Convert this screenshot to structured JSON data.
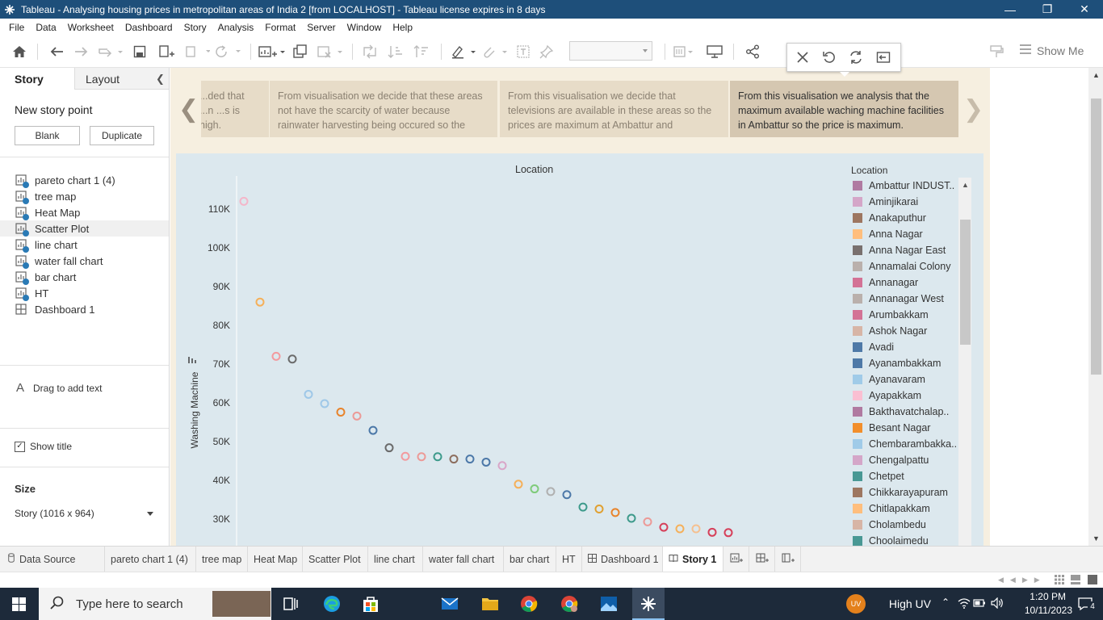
{
  "window": {
    "title": "Tableau - Analysing housing prices in metropolitan areas of India 2 [from LOCALHOST] - Tableau license expires in 8 days"
  },
  "menu": [
    "File",
    "Data",
    "Worksheet",
    "Dashboard",
    "Story",
    "Analysis",
    "Format",
    "Server",
    "Window",
    "Help"
  ],
  "toolbar": {
    "show_me": "Show Me"
  },
  "left_pane": {
    "tab_story": "Story",
    "tab_layout": "Layout",
    "new_story_point": "New story point",
    "blank_button": "Blank",
    "duplicate_button": "Duplicate",
    "sheets": [
      "pareto chart 1 (4)",
      "tree map",
      "Heat Map",
      "Scatter Plot",
      "line chart",
      "water fall chart",
      "bar chart",
      "HT",
      "Dashboard 1"
    ],
    "drag_text": "Drag to add text",
    "show_title": "Show title",
    "size_label": "Size",
    "size_value": "Story (1016 x 964)"
  },
  "story_points": [
    {
      "text": "...ded that ...n ...s is high."
    },
    {
      "text": "From visualisation we decide that these areas not have the scarcity of water because rainwater harvesting being occured so the"
    },
    {
      "text": "From this visualisation we decide that televisions are available in these areas so the prices are maximum at Ambattur and"
    },
    {
      "text": "From this visualisation we analysis that the maximum available waching machine facilities in Ambattur so the price is maximum."
    }
  ],
  "chart_data": {
    "type": "scatter",
    "title": "Location",
    "ylabel": "Washing Machine",
    "ylim": [
      26000,
      116000
    ],
    "yticks": [
      "110K",
      "100K",
      "90K",
      "80K",
      "70K",
      "60K",
      "50K",
      "40K",
      "30K"
    ],
    "ytick_values": [
      110000,
      100000,
      90000,
      80000,
      70000,
      60000,
      50000,
      40000,
      30000
    ],
    "points": [
      {
        "x": 1,
        "y": 112000,
        "color": "#f4b6c9"
      },
      {
        "x": 2,
        "y": 86000,
        "color": "#f5b05a"
      },
      {
        "x": 3,
        "y": 72000,
        "color": "#f39a9e"
      },
      {
        "x": 4,
        "y": 71300,
        "color": "#6b6b6b"
      },
      {
        "x": 5,
        "y": 62200,
        "color": "#9fc8e8"
      },
      {
        "x": 6,
        "y": 59800,
        "color": "#9fc8e8"
      },
      {
        "x": 7,
        "y": 57600,
        "color": "#e8832a"
      },
      {
        "x": 8,
        "y": 56600,
        "color": "#ec9a97"
      },
      {
        "x": 9,
        "y": 52900,
        "color": "#4c78a8"
      },
      {
        "x": 10,
        "y": 48400,
        "color": "#6b6b6b"
      },
      {
        "x": 11,
        "y": 46200,
        "color": "#f39a9e"
      },
      {
        "x": 12,
        "y": 46100,
        "color": "#ec9a97"
      },
      {
        "x": 13,
        "y": 46100,
        "color": "#3d9a8b"
      },
      {
        "x": 14,
        "y": 45500,
        "color": "#8c6d5d"
      },
      {
        "x": 15,
        "y": 45500,
        "color": "#4c78a8"
      },
      {
        "x": 16,
        "y": 44700,
        "color": "#4c78a8"
      },
      {
        "x": 17,
        "y": 43800,
        "color": "#d9a6c8"
      },
      {
        "x": 18,
        "y": 39000,
        "color": "#f5b05a"
      },
      {
        "x": 19,
        "y": 37800,
        "color": "#7fcb7a"
      },
      {
        "x": 20,
        "y": 37100,
        "color": "#b0b0b0"
      },
      {
        "x": 21,
        "y": 36300,
        "color": "#4c78a8"
      },
      {
        "x": 22,
        "y": 33100,
        "color": "#3d9a8b"
      },
      {
        "x": 23,
        "y": 32600,
        "color": "#e0a030"
      },
      {
        "x": 24,
        "y": 31700,
        "color": "#e8832a"
      },
      {
        "x": 25,
        "y": 30200,
        "color": "#3d9a8b"
      },
      {
        "x": 26,
        "y": 29300,
        "color": "#ec9a97"
      },
      {
        "x": 27,
        "y": 27900,
        "color": "#d6405a"
      },
      {
        "x": 28,
        "y": 27500,
        "color": "#f5b05a"
      },
      {
        "x": 29,
        "y": 27500,
        "color": "#f5c090"
      },
      {
        "x": 30,
        "y": 26600,
        "color": "#d6405a"
      },
      {
        "x": 31,
        "y": 26500,
        "color": "#d6405a"
      }
    ],
    "legend_title": "Location",
    "legend": [
      {
        "label": "Ambattur INDUST..",
        "color": "#b07aa1"
      },
      {
        "label": "Aminjikarai",
        "color": "#d4a6c8"
      },
      {
        "label": "Anakaputhur",
        "color": "#9d7660"
      },
      {
        "label": "Anna Nagar",
        "color": "#ffbe7d"
      },
      {
        "label": "Anna Nagar East",
        "color": "#79706e"
      },
      {
        "label": "Annamalai Colony",
        "color": "#bab0ac"
      },
      {
        "label": "Annanagar",
        "color": "#d37295"
      },
      {
        "label": "Annanagar West",
        "color": "#bab0ac"
      },
      {
        "label": "Arumbakkam",
        "color": "#d37295"
      },
      {
        "label": "Ashok Nagar",
        "color": "#d7b5a6"
      },
      {
        "label": "Avadi",
        "color": "#4e79a7"
      },
      {
        "label": "Ayanambakkam",
        "color": "#4e79a7"
      },
      {
        "label": "Ayanavaram",
        "color": "#a0cbe8"
      },
      {
        "label": "Ayapakkam",
        "color": "#fabfd2"
      },
      {
        "label": "Bakthavatchalap..",
        "color": "#b07aa1"
      },
      {
        "label": "Besant Nagar",
        "color": "#f28e2b"
      },
      {
        "label": "Chembarambakka..",
        "color": "#a0cbe8"
      },
      {
        "label": "Chengalpattu",
        "color": "#d4a6c8"
      },
      {
        "label": "Chetpet",
        "color": "#499894"
      },
      {
        "label": "Chikkarayapuram",
        "color": "#9d7660"
      },
      {
        "label": "Chitlapakkam",
        "color": "#ffbe7d"
      },
      {
        "label": "Cholambedu",
        "color": "#d7b5a6"
      },
      {
        "label": "Choolaimedu",
        "color": "#499894"
      }
    ]
  },
  "bottom_tabs": {
    "data_source": "Data Source",
    "tabs": [
      "pareto chart 1 (4)",
      "tree map",
      "Heat Map",
      "Scatter Plot",
      "line chart",
      "water fall chart",
      "bar chart",
      "HT",
      "Dashboard 1",
      "Story 1"
    ]
  },
  "taskbar": {
    "search_placeholder": "Type here to search",
    "weather": "High UV",
    "weather_badge": "UV",
    "time": "1:20 PM",
    "date": "10/11/2023",
    "notifications": "4"
  }
}
